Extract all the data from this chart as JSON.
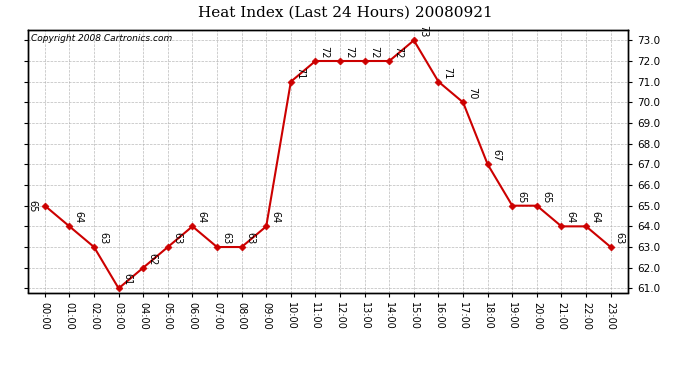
{
  "title": "Heat Index (Last 24 Hours) 20080921",
  "copyright": "Copyright 2008 Cartronics.com",
  "hours": [
    "00:00",
    "01:00",
    "02:00",
    "03:00",
    "04:00",
    "05:00",
    "06:00",
    "07:00",
    "08:00",
    "09:00",
    "10:00",
    "11:00",
    "12:00",
    "13:00",
    "14:00",
    "15:00",
    "16:00",
    "17:00",
    "18:00",
    "19:00",
    "20:00",
    "21:00",
    "22:00",
    "23:00"
  ],
  "values": [
    65,
    64,
    63,
    61,
    62,
    63,
    64,
    63,
    63,
    64,
    71,
    72,
    72,
    72,
    72,
    73,
    71,
    70,
    67,
    65,
    65,
    64,
    64,
    63
  ],
  "ylim_min": 61.0,
  "ylim_max": 73.5,
  "line_color": "#cc0000",
  "marker": "D",
  "marker_size": 3.5,
  "marker_color": "#cc0000",
  "bg_color": "#ffffff",
  "grid_color": "#aaaaaa",
  "label_fontsize": 7,
  "title_fontsize": 11,
  "copyright_fontsize": 6.5,
  "ytick_fontsize": 7.5,
  "xtick_fontsize": 7
}
